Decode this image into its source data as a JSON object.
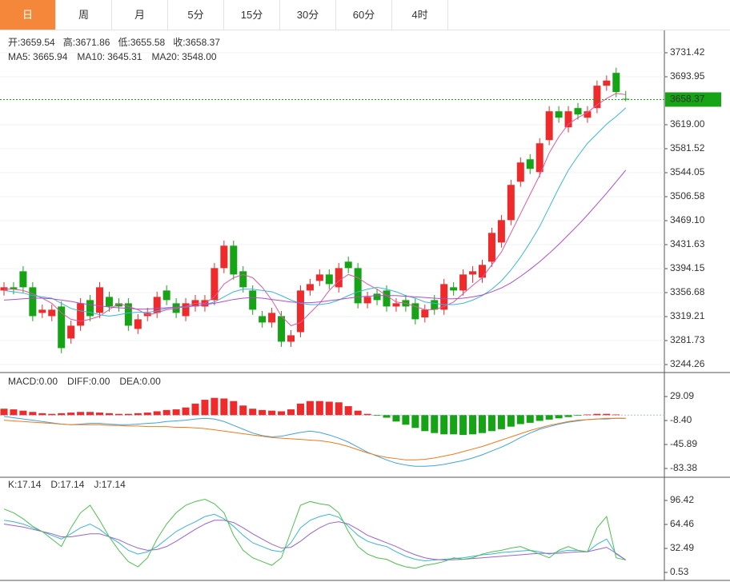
{
  "tabs": [
    "日",
    "周",
    "月",
    "5分",
    "15分",
    "30分",
    "60分",
    "4时"
  ],
  "chart_data": [
    {
      "type": "candlestick",
      "up_color": "#ee2a2a",
      "down_color": "#16a316",
      "header": [
        "开:",
        "高:",
        "低:",
        "收:"
      ],
      "open": [
        3360,
        3365,
        3390,
        3365,
        3325,
        3320,
        3335,
        3285,
        3305,
        3345,
        3325,
        3350,
        3340,
        3340,
        3300,
        3320,
        3325,
        3360,
        3340,
        3320,
        3335,
        3335,
        3345,
        3395,
        3430,
        3390,
        3360,
        3320,
        3310,
        3320,
        3280,
        3295,
        3360,
        3375,
        3385,
        3365,
        3405,
        3395,
        3340,
        3355,
        3360,
        3335,
        3345,
        3340,
        3318,
        3345,
        3330,
        3365,
        3360,
        3385,
        3380,
        3405,
        3435,
        3470,
        3530,
        3565,
        3545,
        3595,
        3640,
        3615,
        3645,
        3630,
        3645,
        3680,
        3700,
        3659.54
      ],
      "high": [
        3373,
        3373,
        3398,
        3373,
        3338,
        3338,
        3343,
        3313,
        3348,
        3353,
        3373,
        3358,
        3348,
        3348,
        3323,
        3333,
        3358,
        3368,
        3348,
        3348,
        3353,
        3353,
        3403,
        3438,
        3438,
        3398,
        3368,
        3328,
        3333,
        3328,
        3298,
        3368,
        3378,
        3393,
        3393,
        3403,
        3413,
        3403,
        3358,
        3363,
        3368,
        3348,
        3353,
        3348,
        3338,
        3353,
        3378,
        3373,
        3393,
        3398,
        3408,
        3458,
        3478,
        3533,
        3568,
        3573,
        3598,
        3648,
        3648,
        3648,
        3653,
        3648,
        3688,
        3696,
        3708,
        3671.86
      ],
      "low": [
        3352,
        3354,
        3357,
        3312,
        3317,
        3312,
        3262,
        3277,
        3297,
        3312,
        3317,
        3327,
        3327,
        3297,
        3292,
        3312,
        3317,
        3337,
        3317,
        3312,
        3327,
        3327,
        3337,
        3387,
        3377,
        3357,
        3322,
        3302,
        3302,
        3272,
        3272,
        3287,
        3352,
        3367,
        3362,
        3357,
        3387,
        3332,
        3332,
        3337,
        3327,
        3327,
        3327,
        3307,
        3310,
        3322,
        3322,
        3352,
        3352,
        3372,
        3372,
        3397,
        3427,
        3462,
        3522,
        3542,
        3537,
        3587,
        3622,
        3607,
        3627,
        3622,
        3637,
        3672,
        3662,
        3655.58
      ],
      "close": [
        3365,
        3362,
        3365,
        3320,
        3330,
        3330,
        3270,
        3305,
        3340,
        3320,
        3365,
        3335,
        3335,
        3305,
        3315,
        3325,
        3350,
        3345,
        3325,
        3340,
        3345,
        3345,
        3395,
        3430,
        3385,
        3365,
        3330,
        3310,
        3325,
        3280,
        3290,
        3360,
        3370,
        3385,
        3370,
        3395,
        3395,
        3340,
        3350,
        3345,
        3335,
        3340,
        3335,
        3315,
        3330,
        3330,
        3370,
        3360,
        3385,
        3390,
        3400,
        3450,
        3470,
        3525,
        3560,
        3550,
        3590,
        3640,
        3630,
        3640,
        3635,
        3640,
        3680,
        3688,
        3670,
        3658.37
      ],
      "series": [
        {
          "name": "MA5:",
          "legend_value": "3665.94",
          "color": "#e0589c",
          "values": [
            3362,
            3362,
            3360,
            3355,
            3348,
            3340,
            3325,
            3315,
            3312,
            3315,
            3320,
            3330,
            3340,
            3335,
            3330,
            3322,
            3325,
            3330,
            3332,
            3335,
            3340,
            3340,
            3350,
            3370,
            3380,
            3385,
            3380,
            3365,
            3345,
            3320,
            3305,
            3310,
            3325,
            3340,
            3360,
            3375,
            3385,
            3380,
            3370,
            3362,
            3352,
            3342,
            3340,
            3335,
            3330,
            3330,
            3335,
            3342,
            3355,
            3368,
            3380,
            3400,
            3420,
            3450,
            3480,
            3510,
            3540,
            3575,
            3600,
            3620,
            3630,
            3638,
            3650,
            3660,
            3668,
            3665.94
          ]
        },
        {
          "name": "MA10:",
          "legend_value": "3645.31",
          "color": "#3ab6d8",
          "values": [
            3360,
            3358,
            3356,
            3352,
            3350,
            3348,
            3340,
            3332,
            3328,
            3326,
            3322,
            3320,
            3322,
            3325,
            3326,
            3326,
            3328,
            3332,
            3334,
            3334,
            3336,
            3338,
            3342,
            3350,
            3358,
            3362,
            3362,
            3360,
            3358,
            3352,
            3345,
            3340,
            3338,
            3338,
            3340,
            3345,
            3352,
            3358,
            3362,
            3365,
            3362,
            3358,
            3352,
            3348,
            3342,
            3340,
            3338,
            3338,
            3340,
            3345,
            3352,
            3362,
            3375,
            3392,
            3412,
            3435,
            3460,
            3490,
            3520,
            3548,
            3570,
            3590,
            3605,
            3620,
            3632,
            3645.31
          ]
        },
        {
          "name": "MA20:",
          "legend_value": "3548.00",
          "color": "#b04ccc",
          "values": [
            3345,
            3346,
            3347,
            3348,
            3348,
            3347,
            3345,
            3343,
            3340,
            3338,
            3336,
            3334,
            3333,
            3332,
            3331,
            3331,
            3332,
            3333,
            3334,
            3335,
            3336,
            3338,
            3340,
            3343,
            3346,
            3348,
            3349,
            3348,
            3346,
            3344,
            3342,
            3341,
            3341,
            3342,
            3344,
            3346,
            3348,
            3350,
            3351,
            3352,
            3352,
            3352,
            3351,
            3350,
            3349,
            3348,
            3347,
            3347,
            3348,
            3350,
            3353,
            3358,
            3364,
            3372,
            3382,
            3393,
            3405,
            3418,
            3432,
            3447,
            3462,
            3478,
            3495,
            3512,
            3530,
            3548
          ]
        }
      ],
      "ylim": [
        3231.8,
        3766.4
      ],
      "yticks": [
        3244.26,
        3281.73,
        3319.21,
        3356.68,
        3394.15,
        3431.63,
        {
          "value": 3469.1,
          "label": "3469.10"
        },
        3506.58,
        3544.05,
        3581.52,
        {
          "value": 3619,
          "label": "3619.00"
        },
        3693.95,
        3731.42
      ],
      "grid": true
    },
    {
      "type": "macd",
      "series": [
        {
          "name": "MACD:",
          "legend_value": "0.00",
          "color": "#ee2a2a",
          "down_color": "#16a316",
          "values": [
            10,
            9,
            7,
            5,
            3,
            2,
            3,
            4,
            5,
            5,
            4,
            3,
            2,
            2,
            3,
            4,
            6,
            8,
            9,
            12,
            18,
            24,
            27,
            26,
            22,
            15,
            10,
            8,
            7,
            6,
            9,
            18,
            22,
            22,
            21,
            20,
            14,
            7,
            2,
            -1,
            -4,
            -10,
            -15,
            -20,
            -25,
            -28,
            -30,
            -30,
            -31,
            -30,
            -28,
            -25,
            -22,
            -18,
            -14,
            -12,
            -9,
            -7,
            -5,
            -3,
            -1,
            1,
            2,
            2,
            1,
            0
          ]
        },
        {
          "name": "DIFF:",
          "legend_value": "0.00",
          "color": "#3ea2e0",
          "values": [
            -2,
            -4,
            -6,
            -8,
            -10,
            -12,
            -14,
            -15,
            -14,
            -13,
            -13,
            -14,
            -15,
            -15,
            -14,
            -13,
            -12,
            -10,
            -9,
            -8,
            -6,
            -5,
            -6,
            -10,
            -16,
            -22,
            -28,
            -32,
            -34,
            -33,
            -30,
            -27,
            -25,
            -27,
            -31,
            -36,
            -42,
            -50,
            -58,
            -64,
            -70,
            -75,
            -78,
            -80,
            -80,
            -79,
            -77,
            -74,
            -71,
            -67,
            -62,
            -56,
            -50,
            -43,
            -35,
            -28,
            -22,
            -18,
            -14,
            -11,
            -9,
            -7,
            -6,
            -6,
            -5,
            -5
          ]
        },
        {
          "name": "DEA:",
          "legend_value": "0.00",
          "color": "#f07a1a",
          "values": [
            -8,
            -9,
            -10,
            -11,
            -12,
            -13,
            -14,
            -15,
            -15,
            -15,
            -15,
            -16,
            -16,
            -17,
            -17,
            -18,
            -18,
            -18,
            -19,
            -19,
            -20,
            -21,
            -23,
            -25,
            -27,
            -29,
            -31,
            -33,
            -35,
            -36,
            -37,
            -38,
            -39,
            -40,
            -42,
            -45,
            -49,
            -54,
            -59,
            -63,
            -66,
            -68,
            -70,
            -70,
            -69,
            -67,
            -64,
            -61,
            -57,
            -53,
            -49,
            -44,
            -39,
            -34,
            -29,
            -24,
            -20,
            -16,
            -13,
            -10,
            -8,
            -7,
            -6,
            -5,
            -5,
            -5
          ]
        }
      ],
      "ylim": [
        -97.13,
        66.58
      ],
      "yticks": [
        -83.38,
        -45.89,
        {
          "value": -8.4,
          "label": "-8.40"
        },
        29.09
      ]
    },
    {
      "type": "line",
      "series": [
        {
          "name": "K:",
          "color": "#3bb4d6",
          "values": [
            70,
            68,
            65,
            60,
            55,
            50,
            45,
            52,
            60,
            65,
            58,
            48,
            40,
            30,
            25,
            28,
            35,
            45,
            55,
            62,
            68,
            75,
            78,
            72,
            62,
            50,
            40,
            35,
            30,
            28,
            40,
            60,
            70,
            75,
            78,
            74,
            62,
            50,
            42,
            38,
            35,
            28,
            22,
            18,
            16,
            17,
            18,
            19,
            20,
            22,
            24,
            25,
            27,
            28,
            29,
            30,
            28,
            25,
            28,
            30,
            30,
            28,
            38,
            45,
            25,
            17.14
          ]
        },
        {
          "name": "D:",
          "color": "#9a62d0",
          "values": [
            65,
            63,
            61,
            58,
            55,
            52,
            48,
            48,
            50,
            52,
            52,
            48,
            44,
            38,
            33,
            30,
            31,
            35,
            42,
            50,
            58,
            65,
            70,
            70,
            67,
            60,
            52,
            45,
            38,
            33,
            34,
            42,
            52,
            60,
            66,
            68,
            65,
            58,
            50,
            45,
            40,
            35,
            29,
            24,
            20,
            18,
            17,
            17.5,
            18,
            19,
            20,
            21,
            22,
            23,
            24,
            25,
            26,
            26,
            26,
            27,
            28,
            28,
            31,
            34,
            26,
            17.14
          ]
        },
        {
          "name": "J:",
          "color": "#4cc04c",
          "values": [
            85,
            80,
            72,
            62,
            55,
            45,
            35,
            60,
            80,
            90,
            70,
            48,
            30,
            15,
            8,
            20,
            45,
            65,
            80,
            90,
            95,
            98,
            92,
            80,
            50,
            30,
            20,
            15,
            10,
            20,
            55,
            90,
            95,
            92,
            90,
            80,
            55,
            35,
            25,
            20,
            18,
            12,
            8,
            6,
            10,
            12,
            15,
            20,
            18,
            20,
            25,
            28,
            30,
            33,
            35,
            30,
            25,
            20,
            30,
            35,
            30,
            28,
            60,
            75,
            20,
            17.14
          ]
        }
      ],
      "ylim": [
        -10.1,
        127.3
      ],
      "yticks": [
        0.53,
        32.49,
        64.46,
        96.42
      ]
    }
  ]
}
